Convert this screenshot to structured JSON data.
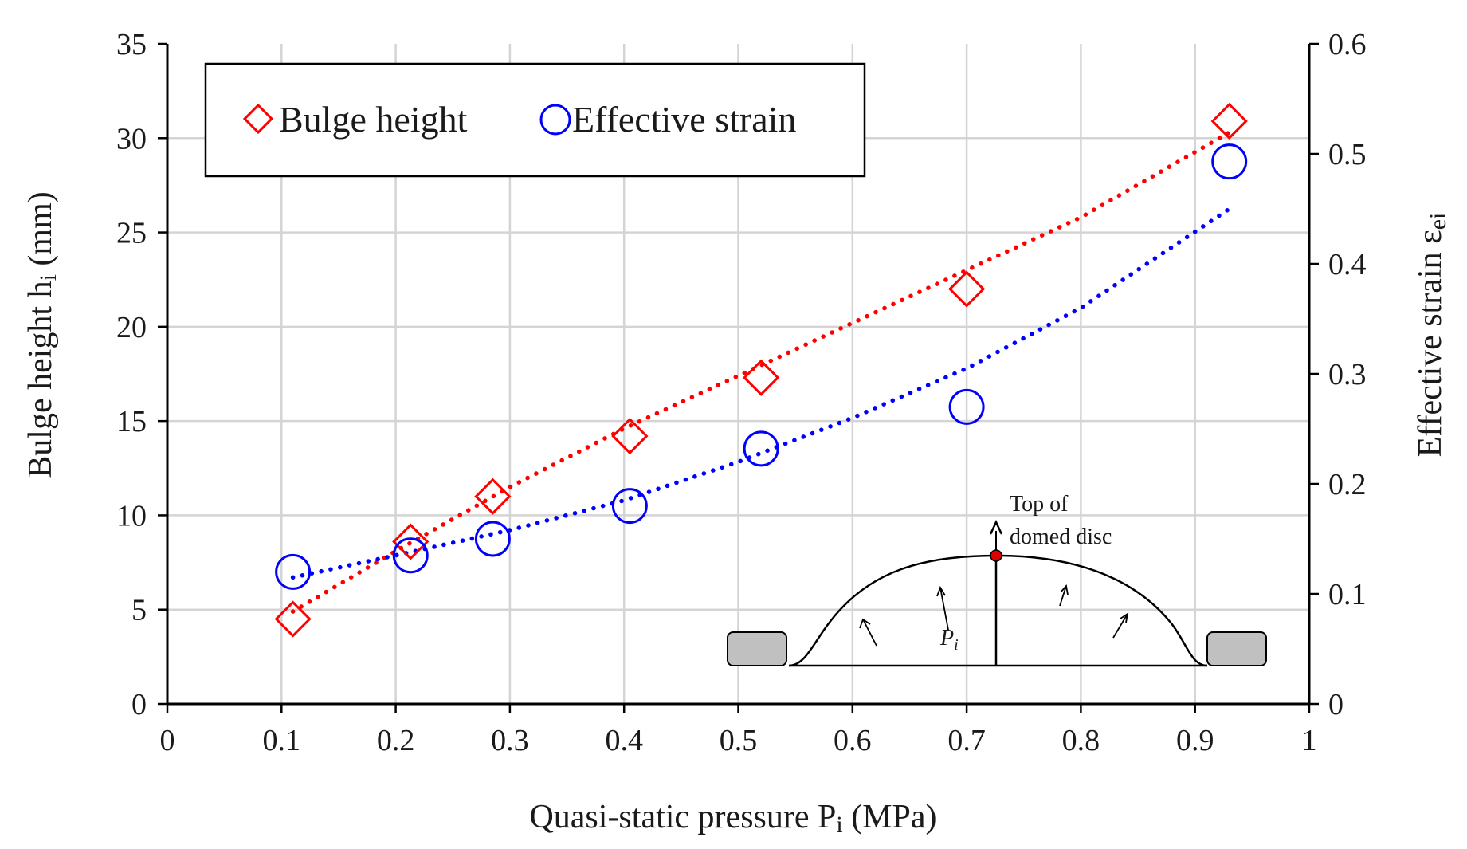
{
  "chart_data": {
    "type": "scatter",
    "x_label": "Quasi-static pressure P",
    "x_label_sub": "i",
    "x_label_unit": " (MPa)",
    "y_left_label": "Bulge height h",
    "y_left_label_sub": "i",
    "y_left_label_unit": " (mm)",
    "y_right_label": "Effective strain ε",
    "y_right_label_sub": "ei",
    "xlim": [
      0,
      1
    ],
    "ylim_left": [
      0,
      35
    ],
    "ylim_right": [
      0,
      0.6
    ],
    "x_ticks": [
      "0",
      "0.1",
      "0.2",
      "0.3",
      "0.4",
      "0.5",
      "0.6",
      "0.7",
      "0.8",
      "0.9",
      "1"
    ],
    "y_left_ticks": [
      "0",
      "5",
      "10",
      "15",
      "20",
      "25",
      "30",
      "35"
    ],
    "y_right_ticks": [
      "0",
      "0.1",
      "0.2",
      "0.3",
      "0.4",
      "0.5",
      "0.6"
    ],
    "grid": true,
    "legend_position": "top-left",
    "series": [
      {
        "name": "Bulge height",
        "axis": "left",
        "marker": "diamond",
        "color": "#ff0000",
        "x": [
          0.11,
          0.213,
          0.285,
          0.405,
          0.52,
          0.7,
          0.93
        ],
        "y": [
          4.5,
          8.6,
          11.0,
          14.2,
          17.3,
          22.0,
          30.9
        ]
      },
      {
        "name": "Effective strain",
        "axis": "right",
        "marker": "circle",
        "color": "#0000ff",
        "x": [
          0.11,
          0.213,
          0.285,
          0.405,
          0.52,
          0.7,
          0.93
        ],
        "y": [
          0.12,
          0.135,
          0.15,
          0.18,
          0.232,
          0.27,
          0.493
        ]
      }
    ],
    "trendlines": [
      {
        "series": "Bulge height",
        "style": "dotted",
        "x": [
          0.11,
          0.2,
          0.3,
          0.4,
          0.5,
          0.6,
          0.7,
          0.8,
          0.93
        ],
        "y": [
          4.9,
          8.1,
          11.5,
          14.6,
          17.4,
          20.2,
          23.0,
          25.8,
          30.3
        ]
      },
      {
        "series": "Effective strain",
        "style": "dotted",
        "x": [
          0.11,
          0.2,
          0.3,
          0.4,
          0.5,
          0.6,
          0.7,
          0.8,
          0.93
        ],
        "y": [
          0.115,
          0.135,
          0.158,
          0.185,
          0.22,
          0.26,
          0.305,
          0.36,
          0.45
        ]
      }
    ],
    "inset": {
      "label_top": "Top of",
      "label_bottom": "domed disc",
      "pressure_label": "P",
      "pressure_sub": "i"
    }
  }
}
